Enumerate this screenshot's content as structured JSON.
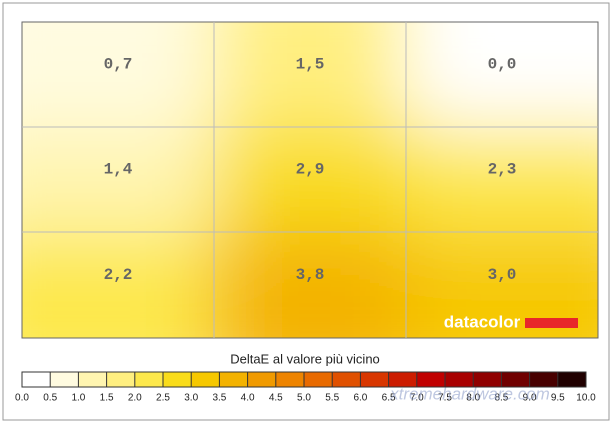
{
  "chart_data": {
    "type": "heatmap",
    "values": [
      [
        0.7,
        1.5,
        0.0
      ],
      [
        1.4,
        2.9,
        2.3
      ],
      [
        2.2,
        3.8,
        3.0
      ]
    ],
    "value_labels": [
      [
        "0,7",
        "1,5",
        "0,0"
      ],
      [
        "1,4",
        "2,9",
        "2,3"
      ],
      [
        "2,2",
        "3,8",
        "3,0"
      ]
    ],
    "brand": "datacolor",
    "watermark": "xtremehardware.com",
    "colorbar": {
      "title": "DeltaE al valore più vicino",
      "ticks": [
        {
          "value": 0,
          "label": "0.0"
        },
        0.5,
        {
          "value": 1,
          "label": "1.0"
        },
        1.5,
        {
          "value": 2,
          "label": "2.0"
        },
        2.5,
        {
          "value": 3,
          "label": "3.0"
        },
        3.5,
        {
          "value": 4,
          "label": "4.0"
        },
        4.5,
        {
          "value": 5,
          "label": "5.0"
        },
        5.5,
        {
          "value": 6,
          "label": "6.0"
        },
        6.5,
        {
          "value": 7,
          "label": "7.0"
        },
        7.5,
        {
          "value": 8,
          "label": "8.0"
        },
        8.5,
        {
          "value": 9,
          "label": "9.0"
        },
        9.5,
        {
          "value": 10,
          "label": "10.0"
        }
      ],
      "colors": [
        "#ffffff",
        "#fffbe0",
        "#fff5b0",
        "#ffef80",
        "#fde84c",
        "#f9dc1a",
        "#f6c800",
        "#f3b200",
        "#f09a00",
        "#ee8400",
        "#e86a00",
        "#e05000",
        "#d83600",
        "#cc1c00",
        "#c00000",
        "#a80000",
        "#900000",
        "#700000",
        "#480000",
        "#200000"
      ]
    }
  }
}
